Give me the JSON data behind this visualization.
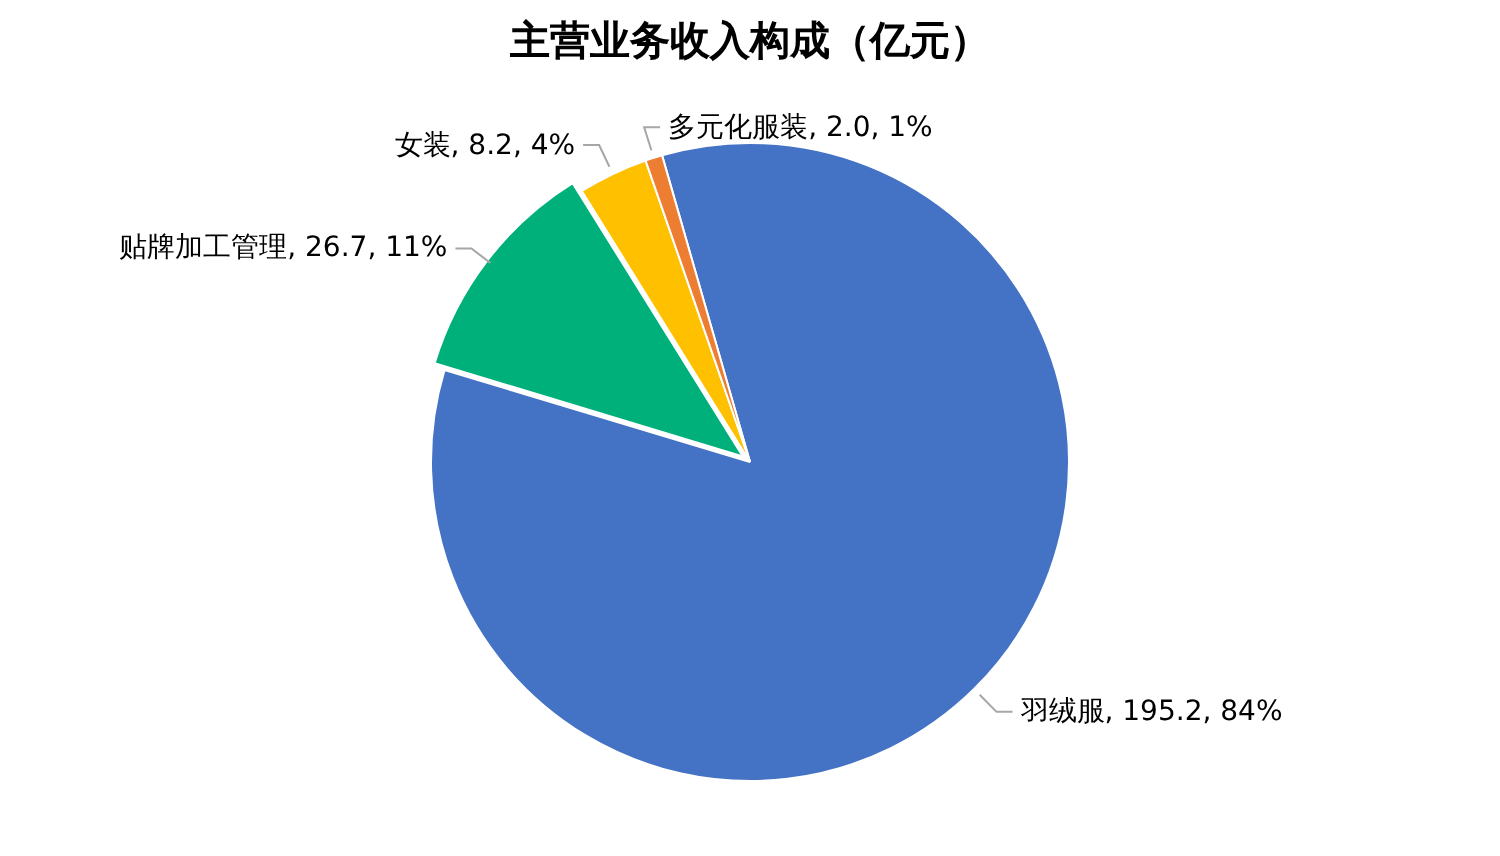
{
  "chart_data": {
    "type": "pie",
    "title": "主营业务收入构成（亿元）",
    "categories": [
      "羽绒服",
      "贴牌加工管理",
      "女装",
      "多元化服装"
    ],
    "values": [
      195.2,
      26.7,
      8.2,
      2.0
    ],
    "colors": [
      "#4472c4",
      "#00b07a",
      "#ffc000",
      "#ed7d31"
    ],
    "value_labels": [
      "195.2, 84%",
      "26.7, 11%",
      "8.2, 4%",
      "2.0, 1%"
    ],
    "legend": false
  }
}
